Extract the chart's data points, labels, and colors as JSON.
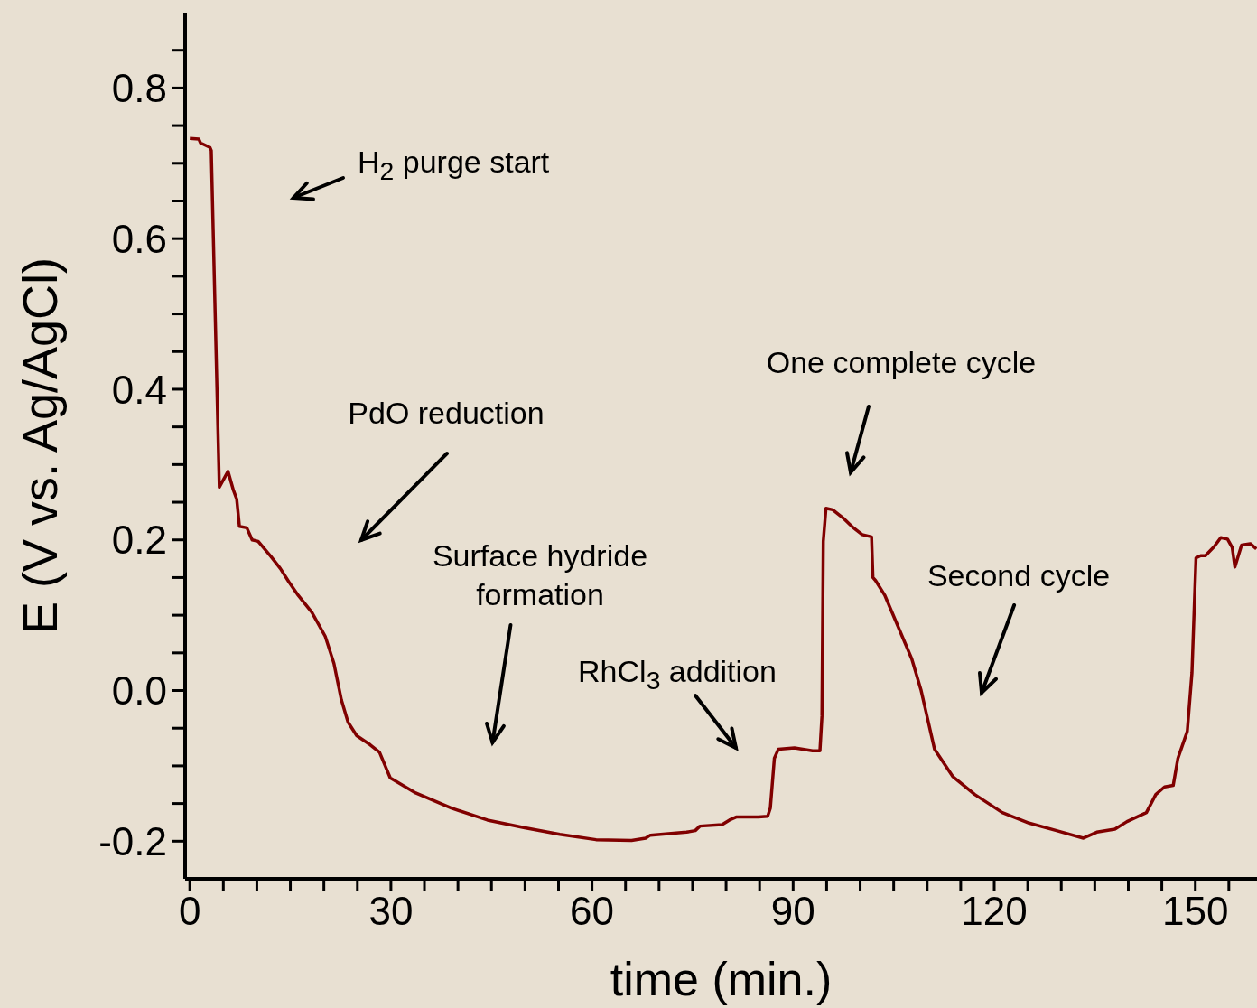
{
  "chart_data": {
    "type": "line",
    "xlabel": "time (min.)",
    "ylabel": "E (V vs. Ag/AgCl)",
    "x": [
      0,
      1.35,
      1.6,
      3.0,
      3.2,
      4.4,
      5.7,
      6.5,
      7.0,
      7.4,
      8.5,
      9.3,
      10.2,
      12.1,
      13.5,
      14.8,
      16.2,
      18.2,
      20.2,
      21.5,
      22.6,
      23.6,
      24.9,
      26.9,
      28.3,
      29.9,
      33.7,
      39.0,
      44.4,
      49.8,
      55.2,
      60.6,
      65.9,
      68.0,
      68.7,
      74.1,
      75.4,
      76.1,
      79.4,
      80.5,
      81.5,
      84.8,
      86.2,
      86.6,
      87.2,
      87.8,
      90.2,
      92.9,
      94.0,
      94.3,
      94.5,
      94.9,
      95.9,
      97.6,
      99.0,
      100.3,
      101.7,
      101.9,
      102.3,
      103.7,
      105.7,
      107.7,
      109.1,
      111.1,
      113.8,
      117.1,
      121.2,
      125.2,
      129.3,
      133.3,
      135.3,
      138.0,
      139.8,
      142.7,
      144.1,
      145.4,
      146.7,
      147.4,
      148.8,
      149.5,
      150.1,
      150.8,
      151.5,
      152.8,
      153.8,
      154.8,
      155.5,
      155.9,
      156.9,
      158.2,
      159.1
    ],
    "series": [
      {
        "color": "#800000",
        "values": [
          0.733,
          0.732,
          0.727,
          0.721,
          0.717,
          0.27,
          0.291,
          0.266,
          0.254,
          0.218,
          0.216,
          0.2,
          0.198,
          0.178,
          0.162,
          0.144,
          0.126,
          0.104,
          0.072,
          0.036,
          -0.012,
          -0.042,
          -0.06,
          -0.072,
          -0.082,
          -0.116,
          -0.136,
          -0.156,
          -0.172,
          -0.182,
          -0.191,
          -0.198,
          -0.199,
          -0.196,
          -0.192,
          -0.188,
          -0.186,
          -0.18,
          -0.178,
          -0.172,
          -0.168,
          -0.168,
          -0.167,
          -0.156,
          -0.09,
          -0.078,
          -0.076,
          -0.08,
          -0.08,
          -0.034,
          0.198,
          0.242,
          0.24,
          0.228,
          0.216,
          0.207,
          0.204,
          0.15,
          0.146,
          0.126,
          0.084,
          0.042,
          0.0,
          -0.078,
          -0.114,
          -0.138,
          -0.162,
          -0.176,
          -0.186,
          -0.196,
          -0.188,
          -0.184,
          -0.174,
          -0.162,
          -0.138,
          -0.128,
          -0.126,
          -0.09,
          -0.054,
          0.024,
          0.176,
          0.179,
          0.179,
          0.191,
          0.203,
          0.201,
          0.19,
          0.164,
          0.193,
          0.195,
          0.188
        ]
      }
    ],
    "xlim": [
      -0.7,
      159.2
    ],
    "ylim": [
      -0.25,
      0.9
    ],
    "xticks": [
      0,
      {
        "value": 5,
        "label": null
      },
      {
        "value": 10,
        "label": null
      },
      {
        "value": 15,
        "label": null
      },
      {
        "value": 20,
        "label": null
      },
      {
        "value": 25,
        "label": null
      },
      30,
      {
        "value": 35,
        "label": null
      },
      {
        "value": 40,
        "label": null
      },
      {
        "value": 45,
        "label": null
      },
      {
        "value": 50,
        "label": null
      },
      {
        "value": 55,
        "label": null
      },
      60,
      {
        "value": 65,
        "label": null
      },
      {
        "value": 70,
        "label": null
      },
      {
        "value": 75,
        "label": null
      },
      {
        "value": 80,
        "label": null
      },
      {
        "value": 85,
        "label": null
      },
      90,
      {
        "value": 95,
        "label": null
      },
      {
        "value": 100,
        "label": null
      },
      {
        "value": 105,
        "label": null
      },
      {
        "value": 110,
        "label": null
      },
      {
        "value": 115,
        "label": null
      },
      120,
      {
        "value": 125,
        "label": null
      },
      {
        "value": 130,
        "label": null
      },
      {
        "value": 135,
        "label": null
      },
      {
        "value": 140,
        "label": null
      },
      {
        "value": 145,
        "label": null
      },
      150,
      {
        "value": 155,
        "label": null
      }
    ],
    "yticks": [
      {
        "value": -0.2,
        "label": "-0.2"
      },
      {
        "value": -0.15,
        "label": null
      },
      {
        "value": -0.1,
        "label": null
      },
      {
        "value": -0.05,
        "label": null
      },
      {
        "value": 0,
        "label": "0.0"
      },
      {
        "value": 0.05,
        "label": null
      },
      {
        "value": 0.1,
        "label": null
      },
      {
        "value": 0.15,
        "label": null
      },
      {
        "value": 0.2,
        "label": "0.2"
      },
      {
        "value": 0.25,
        "label": null
      },
      {
        "value": 0.3,
        "label": null
      },
      {
        "value": 0.35,
        "label": null
      },
      {
        "value": 0.4,
        "label": "0.4"
      },
      {
        "value": 0.45,
        "label": null
      },
      {
        "value": 0.5,
        "label": null
      },
      {
        "value": 0.55,
        "label": null
      },
      {
        "value": 0.6,
        "label": "0.6"
      },
      {
        "value": 0.65,
        "label": null
      },
      {
        "value": 0.7,
        "label": null
      },
      {
        "value": 0.75,
        "label": null
      },
      {
        "value": 0.8,
        "label": "0.8"
      },
      {
        "value": 0.85,
        "label": null
      }
    ],
    "annotations": [
      "H$_{2}$ purge start",
      "PdO reduction",
      "Surface hydride formation",
      "RhCl$_{3}$ addition",
      "One complete cycle",
      "Second cycle"
    ],
    "grid": false,
    "legend": false,
    "marker": "none",
    "line_style": "solid"
  }
}
